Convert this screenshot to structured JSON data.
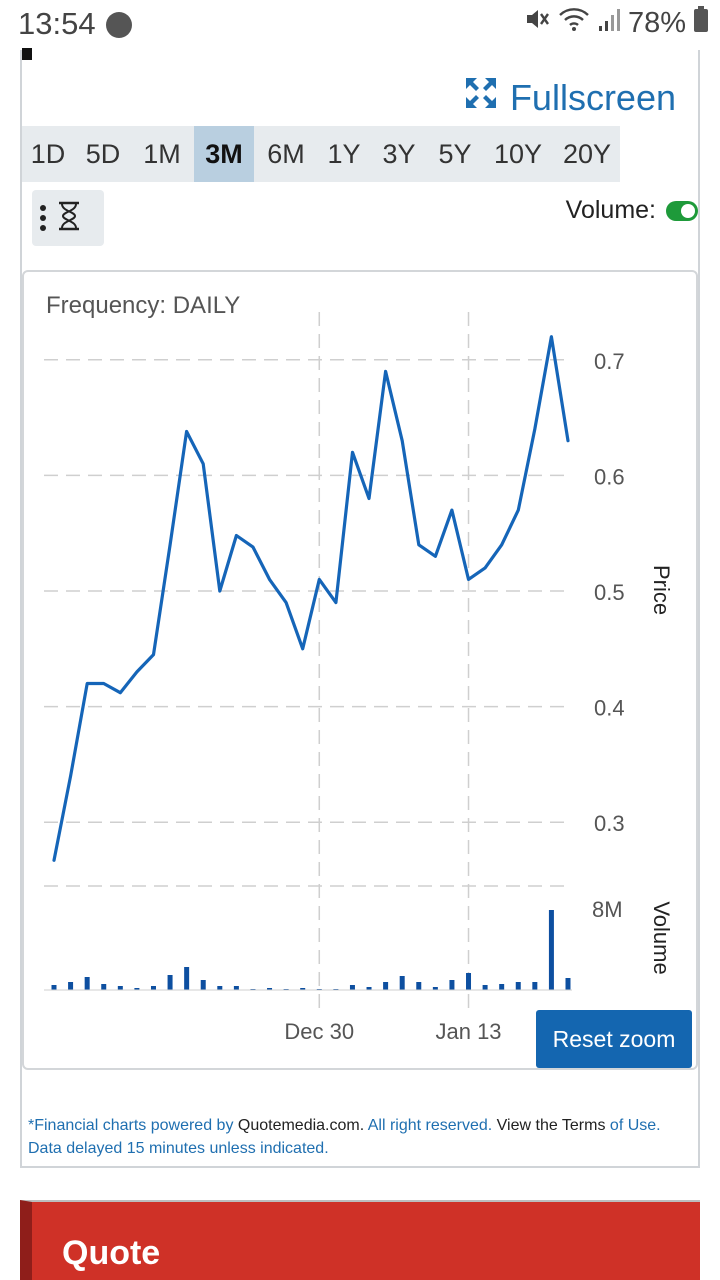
{
  "status_bar": {
    "time": "13:54",
    "battery": "78%"
  },
  "header": {
    "fullscreen_label": "Fullscreen"
  },
  "ranges": [
    {
      "label": "1D",
      "active": false
    },
    {
      "label": "5D",
      "active": false
    },
    {
      "label": "1M",
      "active": false
    },
    {
      "label": "3M",
      "active": true
    },
    {
      "label": "6M",
      "active": false
    },
    {
      "label": "1Y",
      "active": false
    },
    {
      "label": "3Y",
      "active": false
    },
    {
      "label": "5Y",
      "active": false
    },
    {
      "label": "10Y",
      "active": false
    },
    {
      "label": "20Y",
      "active": false
    }
  ],
  "volume_toggle": {
    "label": "Volume:",
    "on": true
  },
  "chart": {
    "frequency_label": "Frequency: DAILY",
    "reset_zoom_label": "Reset zoom"
  },
  "footer": {
    "line1_a": "*Financial charts powered by ",
    "line1_b": "Quotemedia.com.",
    "line1_c": " All right reserved. ",
    "line1_d": "View the Terms",
    "line1_e": " of Use.",
    "line2": "Data delayed 15 minutes unless indicated."
  },
  "quote_section": {
    "title": "Quote"
  },
  "colors": {
    "line": "#1565b8",
    "volume_bar": "#0d4fa0",
    "accent": "#1f6fb0",
    "quote_bg": "#cf3127"
  },
  "chart_data": {
    "type": "line",
    "title": "Frequency: DAILY",
    "ylabel": "Price",
    "ylim": [
      0.25,
      0.75
    ],
    "yticks": [
      0.3,
      0.4,
      0.5,
      0.6,
      0.7
    ],
    "x_tick_labels": [
      {
        "label": "Dec 30",
        "index": 16
      },
      {
        "label": "Jan 13",
        "index": 25
      }
    ],
    "price": [
      0.267,
      0.34,
      0.42,
      0.42,
      0.412,
      0.43,
      0.445,
      0.54,
      0.638,
      0.61,
      0.5,
      0.548,
      0.538,
      0.51,
      0.49,
      0.45,
      0.51,
      0.49,
      0.62,
      0.58,
      0.69,
      0.63,
      0.54,
      0.53,
      0.57,
      0.51,
      0.52,
      0.54,
      0.57,
      0.64,
      0.72,
      0.63
    ],
    "volume": {
      "label": "Volume",
      "tick_label": "8M",
      "tick_value": 8000000,
      "values": [
        500000,
        800000,
        1300000,
        600000,
        400000,
        200000,
        400000,
        1500000,
        2300000,
        1000000,
        400000,
        400000,
        0,
        200000,
        0,
        200000,
        0,
        0,
        500000,
        300000,
        800000,
        1400000,
        800000,
        300000,
        1000000,
        1700000,
        500000,
        600000,
        800000,
        800000,
        8000000,
        1200000
      ]
    }
  }
}
